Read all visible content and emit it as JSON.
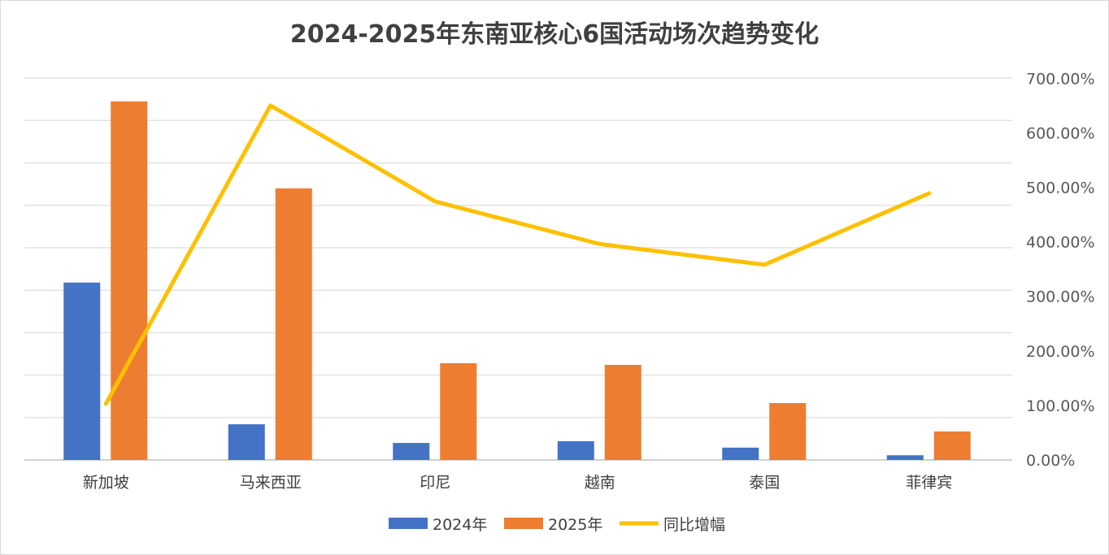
{
  "chart_data": {
    "type": "bar",
    "title": "2024-2025年东南亚核心6国活动场次趋势变化",
    "categories": [
      "新加坡",
      "马来西亚",
      "印尼",
      "越南",
      "泰国",
      "菲律宾"
    ],
    "series": [
      {
        "name": "2024年",
        "type": "bar",
        "axis": "left",
        "color": "#4472C4",
        "values": [
          418,
          84,
          40,
          44,
          29,
          11
        ]
      },
      {
        "name": "2025年",
        "type": "bar",
        "axis": "left",
        "color": "#ED7D31",
        "values": [
          845,
          640,
          228,
          224,
          134,
          67
        ]
      },
      {
        "name": "同比增幅",
        "type": "line",
        "axis": "right",
        "color": "#FFC000",
        "values": [
          103,
          650,
          474,
          396,
          358,
          489
        ]
      }
    ],
    "left_axis": {
      "ylim": [
        0,
        900
      ],
      "labels_shown": false
    },
    "right_axis": {
      "ylim": [
        0,
        700
      ],
      "ticks": [
        "0.00%",
        "100.00%",
        "200.00%",
        "300.00%",
        "400.00%",
        "500.00%",
        "600.00%",
        "700.00%"
      ]
    },
    "grid": true,
    "legend": "bottom"
  }
}
